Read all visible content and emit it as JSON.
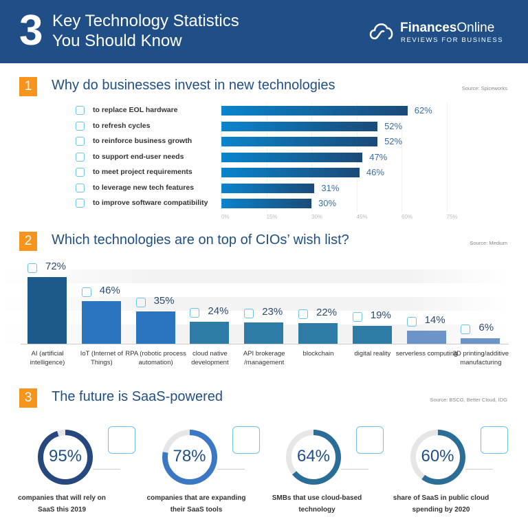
{
  "header": {
    "number": "3",
    "title_line1": "Key Technology Statistics",
    "title_line2": "You Should Know",
    "brand_bold": "Finances",
    "brand_light": "Online",
    "tagline": "REVIEWS FOR BUSINESS"
  },
  "colors": {
    "header": "#1f4f86",
    "accent": "#f7941d",
    "bar_start": "#0a84cc",
    "bar_end": "#1b4a78"
  },
  "sections": [
    {
      "number": "1",
      "title": "Why do businesses invest in new technologies",
      "source": "Source: Spiceworks"
    },
    {
      "number": "2",
      "title": "Which technologies are on top of CIOs’ wish list?",
      "source": "Source: Medium"
    },
    {
      "number": "3",
      "title": "The future is SaaS-powered",
      "source": "Source: BSCG, Better Cloud, IDG"
    }
  ],
  "chart_data": [
    {
      "type": "bar",
      "orientation": "horizontal",
      "xlim": [
        0,
        75
      ],
      "ticks": [
        "0%",
        "15%",
        "30%",
        "45%",
        "60%",
        "75%"
      ],
      "categories": [
        "to replace EOL hardware",
        "to refresh cycles",
        "to reinforce business growth",
        "to support end-user needs",
        "to meet project requirements",
        "to leverage new tech features",
        "to improve software compatibility"
      ],
      "icons": [
        "calendar-icon",
        "refresh-icon",
        "bar-chart-icon",
        "users-icon",
        "clipboard-icon",
        "laptop-icon",
        "software-icon"
      ],
      "values": [
        62,
        52,
        52,
        47,
        46,
        31,
        30
      ],
      "labels": [
        "62%",
        "52%",
        "52%",
        "47%",
        "46%",
        "31%",
        "30%"
      ]
    },
    {
      "type": "bar",
      "orientation": "vertical",
      "categories": [
        "AI (artificial intelligence)",
        "IoT (Internet of Things)",
        "RPA (robotic process automation)",
        "cloud native development",
        "API brokerage /management",
        "blockchain",
        "digital reality",
        "serverless computing",
        "3D printing/additive manufacturing"
      ],
      "icons": [
        "brain-icon",
        "iot-device-icon",
        "robot-arm-icon",
        "cloud-icon",
        "api-icon",
        "blockchain-icon",
        "vr-headset-icon",
        "serverless-icon",
        "3d-printer-icon"
      ],
      "values": [
        72,
        46,
        35,
        24,
        23,
        22,
        19,
        14,
        6
      ],
      "labels": [
        "72%",
        "46%",
        "35%",
        "24%",
        "23%",
        "22%",
        "19%",
        "14%",
        "6%"
      ],
      "colors": [
        "#1d5a8c",
        "#2b74c0",
        "#2b74c0",
        "#2e7ba6",
        "#2e7ba6",
        "#2e7ba6",
        "#2e7ba6",
        "#6c94c8",
        "#6c94c8"
      ]
    },
    {
      "type": "pie",
      "variant": "donut",
      "values": [
        95,
        78,
        64,
        60
      ],
      "labels": [
        "95%",
        "78%",
        "64%",
        "60%"
      ],
      "captions": [
        [
          "companies that will rely on",
          "SaaS this 2019"
        ],
        [
          "companies that are expanding",
          "their SaaS tools"
        ],
        [
          "SMBs that use cloud-based",
          "technology"
        ],
        [
          "share of SaaS in public cloud",
          "spending by 2020"
        ]
      ],
      "icons": [
        "cloud-gear-icon",
        "data-flow-icon",
        "monitor-icon",
        "money-growth-icon"
      ],
      "colors": [
        "#27487e",
        "#3a78c4",
        "#2a6e97",
        "#2a6e97"
      ]
    }
  ]
}
